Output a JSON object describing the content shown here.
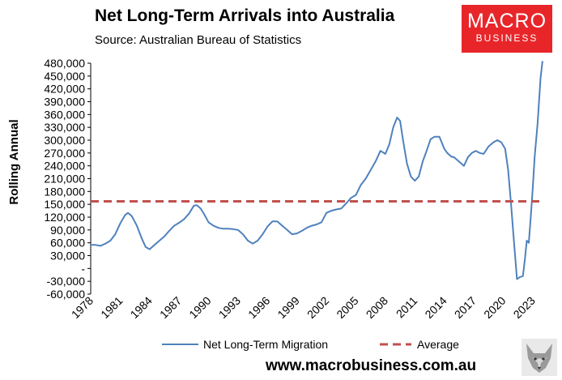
{
  "header": {
    "title": "Net Long-Term Arrivals into Australia",
    "subtitle": "Source: Australian Bureau of Statistics"
  },
  "logo": {
    "line1": "MACRO",
    "line2": "BUSINESS",
    "color": "#e8262a"
  },
  "footer": {
    "url": "www.macrobusiness.com.au"
  },
  "chart_data": {
    "type": "line",
    "title": "Net Long-Term Arrivals into Australia",
    "ylabel": "Rolling Annual",
    "xlabel": "",
    "ylim": [
      -60000,
      480000
    ],
    "xlim": [
      1978,
      2024.5
    ],
    "grid": false,
    "legend_position": "bottom",
    "yticks": [
      {
        "value": 480000,
        "label": "480,000"
      },
      {
        "value": 450000,
        "label": "450,000"
      },
      {
        "value": 420000,
        "label": "420,000"
      },
      {
        "value": 390000,
        "label": "390,000"
      },
      {
        "value": 360000,
        "label": "360,000"
      },
      {
        "value": 330000,
        "label": "330,000"
      },
      {
        "value": 300000,
        "label": "300,000"
      },
      {
        "value": 270000,
        "label": "270,000"
      },
      {
        "value": 240000,
        "label": "240,000"
      },
      {
        "value": 210000,
        "label": "210,000"
      },
      {
        "value": 180000,
        "label": "180,000"
      },
      {
        "value": 150000,
        "label": "150,000"
      },
      {
        "value": 120000,
        "label": "120,000"
      },
      {
        "value": 90000,
        "label": "90,000"
      },
      {
        "value": 60000,
        "label": "60,000"
      },
      {
        "value": 30000,
        "label": "30,000"
      },
      {
        "value": 0,
        "label": "-"
      },
      {
        "value": -30000,
        "label": "-30,000"
      },
      {
        "value": -60000,
        "label": "-60,000"
      }
    ],
    "xticks": [
      {
        "value": 1978,
        "label": "1978"
      },
      {
        "value": 1981,
        "label": "1981"
      },
      {
        "value": 1984,
        "label": "1984"
      },
      {
        "value": 1987,
        "label": "1987"
      },
      {
        "value": 1990,
        "label": "1990"
      },
      {
        "value": 1993,
        "label": "1993"
      },
      {
        "value": 1996,
        "label": "1996"
      },
      {
        "value": 1999,
        "label": "1999"
      },
      {
        "value": 2002,
        "label": "2002"
      },
      {
        "value": 2005,
        "label": "2005"
      },
      {
        "value": 2008,
        "label": "2008"
      },
      {
        "value": 2011,
        "label": "2011"
      },
      {
        "value": 2014,
        "label": "2014"
      },
      {
        "value": 2017,
        "label": "2017"
      },
      {
        "value": 2020,
        "label": "2020"
      },
      {
        "value": 2023,
        "label": "2023"
      }
    ],
    "series": [
      {
        "name": "Net Long-Term Migration",
        "color": "#4f81bd",
        "style": "solid",
        "x": [
          1978.0,
          1978.5,
          1979.0,
          1979.5,
          1980.0,
          1980.5,
          1981.0,
          1981.5,
          1981.8,
          1982.2,
          1982.7,
          1983.2,
          1983.6,
          1984.0,
          1984.5,
          1985.0,
          1985.5,
          1986.0,
          1986.5,
          1987.0,
          1987.5,
          1988.0,
          1988.5,
          1988.8,
          1989.2,
          1989.6,
          1990.0,
          1990.5,
          1991.0,
          1991.5,
          1992.0,
          1992.5,
          1993.0,
          1993.5,
          1994.0,
          1994.5,
          1995.0,
          1995.5,
          1996.0,
          1996.5,
          1997.0,
          1997.5,
          1998.0,
          1998.5,
          1999.0,
          1999.5,
          2000.0,
          2000.5,
          2001.0,
          2001.5,
          2002.0,
          2002.5,
          2003.0,
          2003.5,
          2004.0,
          2004.5,
          2005.0,
          2005.5,
          2006.0,
          2006.5,
          2007.0,
          2007.5,
          2008.0,
          2008.4,
          2008.8,
          2009.2,
          2009.5,
          2009.8,
          2010.2,
          2010.6,
          2011.0,
          2011.4,
          2011.8,
          2012.2,
          2012.6,
          2013.0,
          2013.5,
          2014.0,
          2014.3,
          2014.7,
          2015.0,
          2015.5,
          2016.0,
          2016.4,
          2016.8,
          2017.2,
          2017.6,
          2018.0,
          2018.5,
          2019.0,
          2019.4,
          2019.8,
          2020.2,
          2020.5,
          2020.8,
          2021.1,
          2021.4,
          2021.7,
          2022.0,
          2022.2,
          2022.4,
          2022.6,
          2022.8,
          2023.0,
          2023.2,
          2023.5,
          2023.8,
          2024.0
        ],
        "values": [
          55000,
          55000,
          53000,
          58000,
          65000,
          80000,
          105000,
          125000,
          130000,
          122000,
          100000,
          70000,
          50000,
          45000,
          55000,
          65000,
          75000,
          88000,
          100000,
          107000,
          115000,
          128000,
          147000,
          148000,
          140000,
          125000,
          108000,
          100000,
          95000,
          93000,
          93000,
          92000,
          90000,
          80000,
          65000,
          58000,
          65000,
          80000,
          98000,
          110000,
          110000,
          100000,
          90000,
          80000,
          82000,
          88000,
          95000,
          100000,
          103000,
          108000,
          130000,
          135000,
          138000,
          140000,
          152000,
          165000,
          172000,
          195000,
          210000,
          230000,
          250000,
          275000,
          268000,
          290000,
          330000,
          353000,
          345000,
          300000,
          245000,
          215000,
          205000,
          215000,
          250000,
          275000,
          302000,
          308000,
          308000,
          280000,
          270000,
          262000,
          260000,
          250000,
          240000,
          260000,
          270000,
          275000,
          270000,
          268000,
          285000,
          295000,
          300000,
          295000,
          280000,
          230000,
          150000,
          60000,
          -25000,
          -20000,
          -18000,
          20000,
          65000,
          60000,
          120000,
          185000,
          260000,
          340000,
          445000,
          485000
        ]
      },
      {
        "name": "Average",
        "color": "#c0504d",
        "style": "dashed",
        "x": [
          1978.0,
          2024.0
        ],
        "values": [
          157000,
          157000
        ]
      }
    ]
  }
}
